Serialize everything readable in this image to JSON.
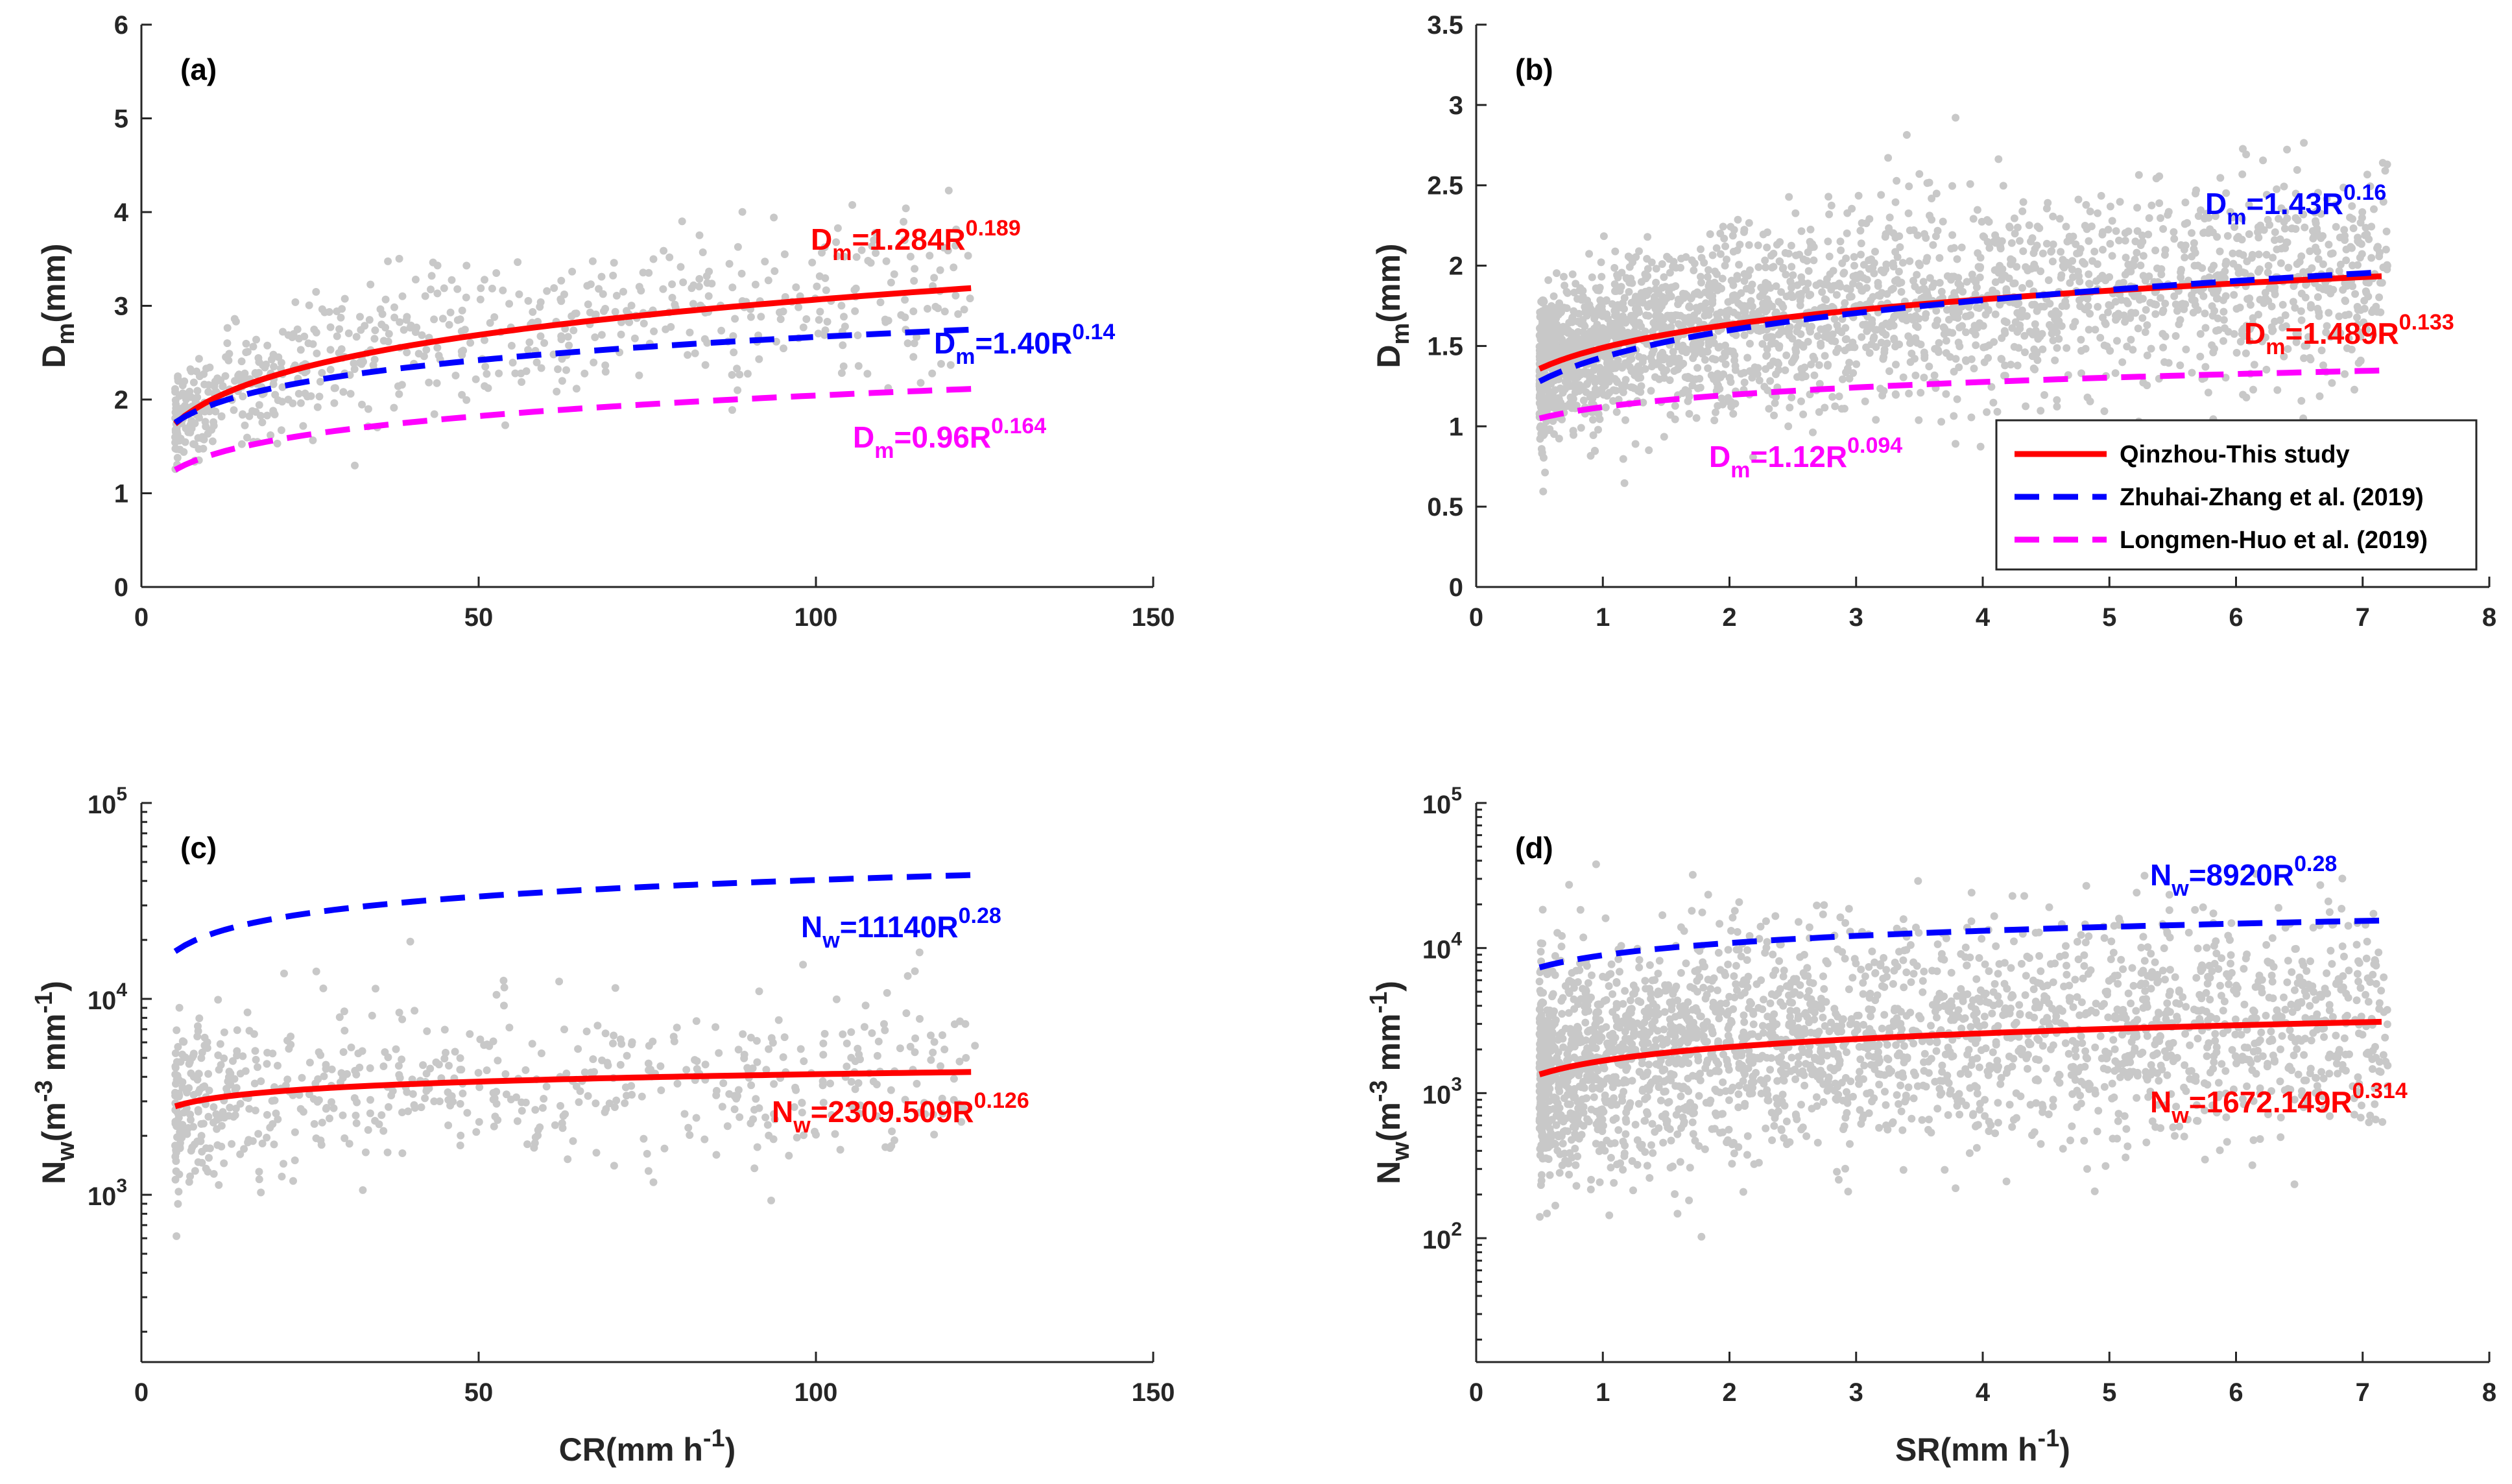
{
  "colors": {
    "this_study": "#ff0000",
    "zhuhai": "#0000ff",
    "longmen": "#ff00ff",
    "scatter": "#c8c8c8",
    "axis": "#262626"
  },
  "legend": {
    "placement": "lower-right of panel (b)",
    "entries": [
      {
        "label": "Qinzhou-This study",
        "color": "#ff0000",
        "style": "solid"
      },
      {
        "label": "Zhuhai-Zhang et al. (2019)",
        "color": "#0000ff",
        "style": "dashed"
      },
      {
        "label": "Longmen-Huo et al. (2019)",
        "color": "#ff00ff",
        "style": "dashed"
      }
    ]
  },
  "chart_data": [
    {
      "panel": "(a)",
      "type": "scatter",
      "xlabel": "",
      "ylabel": {
        "main": "D",
        "sub": "m",
        "rest": "(mm)"
      },
      "xlim": [
        0,
        150
      ],
      "ylim": [
        0,
        6
      ],
      "yscale": "linear",
      "xticks": [
        "0",
        "50",
        "100",
        "150"
      ],
      "yticks": [
        "0",
        "1",
        "2",
        "3",
        "4",
        "5",
        "6"
      ],
      "grid": false,
      "scatter": {
        "x_range": [
          5,
          123
        ],
        "note": "convective rain observations"
      },
      "fits": [
        {
          "label": "Qinzhou-This study",
          "a": 1.284,
          "b": 0.189,
          "x_range": [
            5,
            123
          ],
          "color": "#ff0000",
          "style": "solid"
        },
        {
          "label": "Zhuhai-Zhang et al. (2019)",
          "a": 1.4,
          "b": 0.14,
          "x_range": [
            5,
            123
          ],
          "color": "#0000ff",
          "style": "dashed"
        },
        {
          "label": "Longmen-Huo et al. (2019)",
          "a": 0.96,
          "b": 0.164,
          "x_range": [
            5,
            123
          ],
          "color": "#ff00ff",
          "style": "dashed"
        }
      ],
      "annotations": [
        {
          "main": "D",
          "sub": "m",
          "mid": "=1.284R",
          "sup": "0.189",
          "color": "#ff0000"
        },
        {
          "main": "D",
          "sub": "m",
          "mid": "=1.40R",
          "sup": "0.14",
          "color": "#0000ff"
        },
        {
          "main": "D",
          "sub": "m",
          "mid": "=0.96R",
          "sup": "0.164",
          "color": "#ff00ff"
        }
      ]
    },
    {
      "panel": "(b)",
      "type": "scatter",
      "xlabel": "",
      "ylabel": {
        "main": "D",
        "sub": "m",
        "rest": "(mm)"
      },
      "xlim": [
        0,
        8
      ],
      "ylim": [
        0,
        3.5
      ],
      "yscale": "linear",
      "xticks": [
        "0",
        "1",
        "2",
        "3",
        "4",
        "5",
        "6",
        "7",
        "8"
      ],
      "yticks": [
        "0",
        "0.5",
        "1",
        "1.5",
        "2",
        "2.5",
        "3",
        "3.5"
      ],
      "grid": false,
      "scatter": {
        "x_range": [
          0.5,
          7.2
        ],
        "note": "stratiform rain observations"
      },
      "fits": [
        {
          "label": "Qinzhou-This study",
          "a": 1.489,
          "b": 0.133,
          "x_range": [
            0.5,
            7.15
          ],
          "color": "#ff0000",
          "style": "solid"
        },
        {
          "label": "Zhuhai-Zhang et al. (2019)",
          "a": 1.43,
          "b": 0.16,
          "x_range": [
            0.5,
            7.15
          ],
          "color": "#0000ff",
          "style": "dashed"
        },
        {
          "label": "Longmen-Huo et al. (2019)",
          "a": 1.12,
          "b": 0.094,
          "x_range": [
            0.5,
            7.15
          ],
          "color": "#ff00ff",
          "style": "dashed"
        }
      ],
      "annotations": [
        {
          "main": "D",
          "sub": "m",
          "mid": "=1.43R",
          "sup": "0.16",
          "color": "#0000ff"
        },
        {
          "main": "D",
          "sub": "m",
          "mid": "=1.489R",
          "sup": "0.133",
          "color": "#ff0000"
        },
        {
          "main": "D",
          "sub": "m",
          "mid": "=1.12R",
          "sup": "0.094",
          "color": "#ff00ff"
        }
      ]
    },
    {
      "panel": "(c)",
      "type": "scatter",
      "xlabel": {
        "main": "CR(mm h",
        "sup": "-1",
        "rest": ")"
      },
      "ylabel": {
        "main": "N",
        "sub": "w",
        "rest1": "(m",
        "sup1": "-3",
        "rest2": " mm",
        "sup2": "-1",
        "rest3": ")"
      },
      "xlim": [
        0,
        150
      ],
      "ylim": [
        140,
        100000
      ],
      "yscale": "log",
      "xticks": [
        "0",
        "50",
        "100",
        "150"
      ],
      "yticks": [
        {
          "base": "10",
          "exp": "3",
          "value": 1000
        },
        {
          "base": "10",
          "exp": "4",
          "value": 10000
        },
        {
          "base": "10",
          "exp": "5",
          "value": 100000
        }
      ],
      "grid": false,
      "scatter": {
        "x_range": [
          5,
          123
        ],
        "note": "convective rain observations"
      },
      "fits": [
        {
          "label": "Zhuhai-Zhang et al. (2019)",
          "a": 11140,
          "b": 0.28,
          "x_range": [
            5,
            123
          ],
          "color": "#0000ff",
          "style": "dashed"
        },
        {
          "label": "Qinzhou-This study",
          "a": 2309.509,
          "b": 0.126,
          "x_range": [
            5,
            123
          ],
          "color": "#ff0000",
          "style": "solid"
        }
      ],
      "annotations": [
        {
          "main": "N",
          "sub": "w",
          "mid": "=11140R",
          "sup": "0.28",
          "color": "#0000ff"
        },
        {
          "main": "N",
          "sub": "w",
          "mid": "=2309.509R",
          "sup": "0.126",
          "color": "#ff0000"
        }
      ]
    },
    {
      "panel": "(d)",
      "type": "scatter",
      "xlabel": {
        "main": "SR(mm h",
        "sup": "-1",
        "rest": ")"
      },
      "ylabel": {
        "main": "N",
        "sub": "w",
        "rest1": "(m",
        "sup1": "-3",
        "rest2": " mm",
        "sup2": "-1",
        "rest3": ")"
      },
      "xlim": [
        0,
        8
      ],
      "ylim": [
        14,
        100000
      ],
      "yscale": "log",
      "xticks": [
        "0",
        "1",
        "2",
        "3",
        "4",
        "5",
        "6",
        "7",
        "8"
      ],
      "yticks": [
        {
          "base": "10",
          "exp": "2",
          "value": 100
        },
        {
          "base": "10",
          "exp": "3",
          "value": 1000
        },
        {
          "base": "10",
          "exp": "4",
          "value": 10000
        },
        {
          "base": "10",
          "exp": "5",
          "value": 100000
        }
      ],
      "grid": false,
      "scatter": {
        "x_range": [
          0.5,
          7.2
        ],
        "note": "stratiform rain observations"
      },
      "fits": [
        {
          "label": "Zhuhai-Zhang et al. (2019)",
          "a": 8920,
          "b": 0.28,
          "x_range": [
            0.5,
            7.15
          ],
          "color": "#0000ff",
          "style": "dashed"
        },
        {
          "label": "Qinzhou-This study",
          "a": 1672.149,
          "b": 0.314,
          "x_range": [
            0.5,
            7.15
          ],
          "color": "#ff0000",
          "style": "solid"
        }
      ],
      "annotations": [
        {
          "main": "N",
          "sub": "w",
          "mid": "=8920R",
          "sup": "0.28",
          "color": "#0000ff"
        },
        {
          "main": "N",
          "sub": "w",
          "mid": "=1672.149R",
          "sup": "0.314",
          "color": "#ff0000"
        }
      ]
    }
  ]
}
